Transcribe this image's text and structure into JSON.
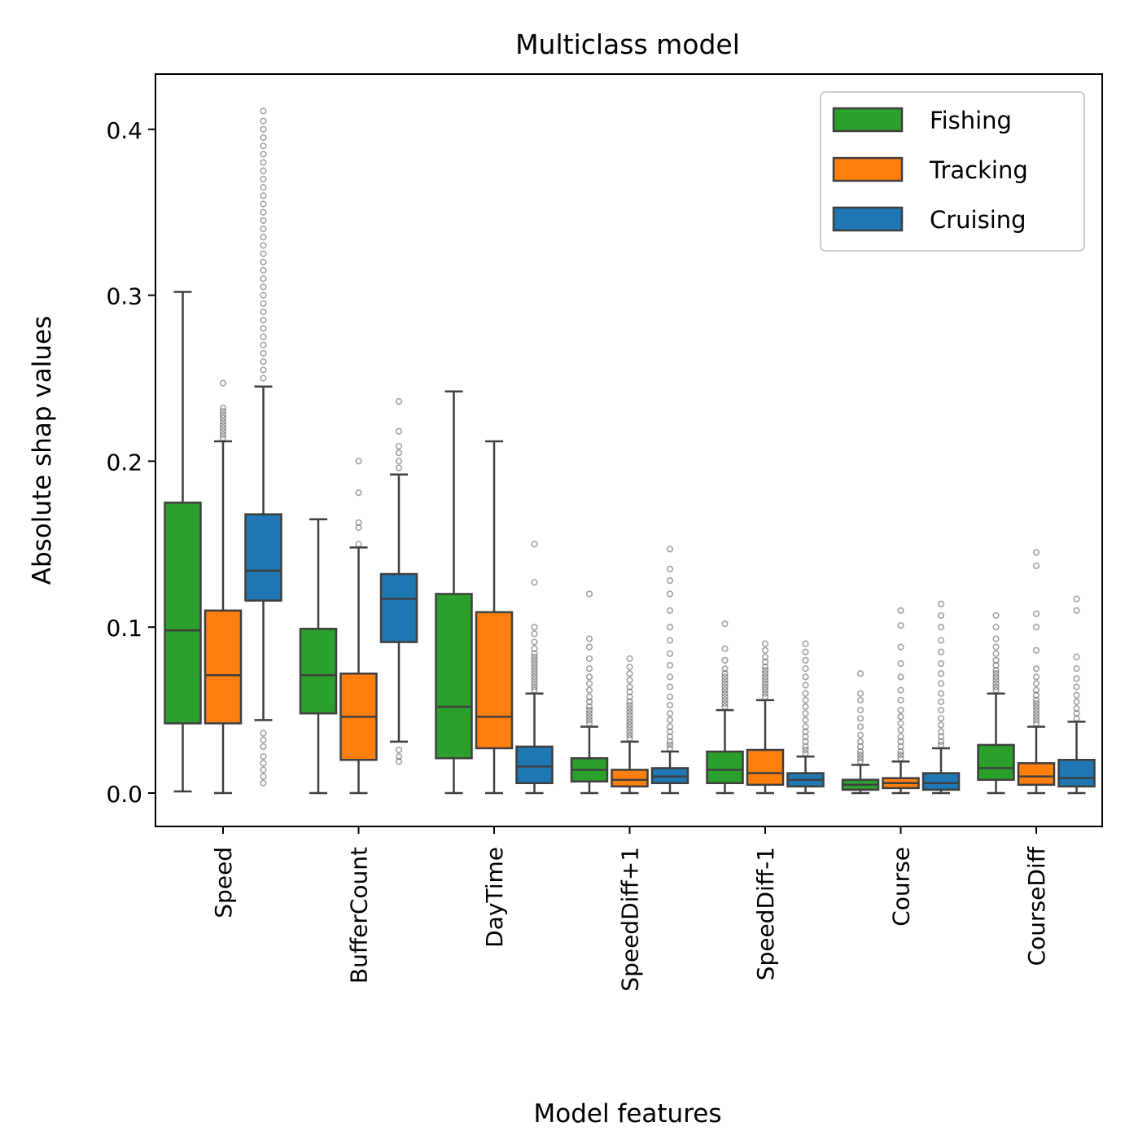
{
  "chart_data": {
    "type": "box",
    "title": "Multiclass model",
    "xlabel": "Model features",
    "ylabel": "Absolute shap values",
    "ylim": [
      -0.02,
      0.43
    ],
    "yticks": [
      0.0,
      0.1,
      0.2,
      0.3,
      0.4
    ],
    "ytick_labels": [
      "0.0",
      "0.1",
      "0.2",
      "0.3",
      "0.4"
    ],
    "grid": false,
    "legend_position": "top-right",
    "categories": [
      "Speed",
      "BufferCount",
      "DayTime",
      "SpeedDiff+1",
      "SpeedDiff-1",
      "Course",
      "CourseDiff"
    ],
    "series": [
      {
        "name": "Fishing",
        "color": "#2ca02c",
        "boxes": [
          {
            "min": 0.001,
            "q1": 0.042,
            "median": 0.098,
            "q3": 0.175,
            "max": 0.302,
            "outliers": []
          },
          {
            "min": 0.0,
            "q1": 0.048,
            "median": 0.071,
            "q3": 0.099,
            "max": 0.165,
            "outliers": []
          },
          {
            "min": 0.0,
            "q1": 0.021,
            "median": 0.052,
            "q3": 0.12,
            "max": 0.242,
            "outliers": []
          },
          {
            "min": 0.0,
            "q1": 0.007,
            "median": 0.014,
            "q3": 0.021,
            "max": 0.04,
            "outliers": [
              0.042,
              0.044,
              0.046,
              0.048,
              0.05,
              0.052,
              0.055,
              0.058,
              0.062,
              0.066,
              0.07,
              0.075,
              0.081,
              0.088,
              0.093,
              0.12
            ]
          },
          {
            "min": 0.0,
            "q1": 0.006,
            "median": 0.014,
            "q3": 0.025,
            "max": 0.05,
            "outliers": [
              0.052,
              0.054,
              0.056,
              0.058,
              0.06,
              0.062,
              0.064,
              0.066,
              0.068,
              0.07,
              0.072,
              0.075,
              0.08,
              0.087,
              0.102
            ]
          },
          {
            "min": 0.0,
            "q1": 0.002,
            "median": 0.005,
            "q3": 0.008,
            "max": 0.017,
            "outliers": [
              0.019,
              0.021,
              0.023,
              0.025,
              0.028,
              0.031,
              0.035,
              0.04,
              0.045,
              0.05,
              0.056,
              0.06,
              0.072
            ]
          },
          {
            "min": 0.0,
            "q1": 0.008,
            "median": 0.015,
            "q3": 0.029,
            "max": 0.06,
            "outliers": [
              0.062,
              0.064,
              0.066,
              0.068,
              0.07,
              0.072,
              0.074,
              0.077,
              0.08,
              0.084,
              0.088,
              0.093,
              0.1,
              0.107
            ]
          }
        ]
      },
      {
        "name": "Tracking",
        "color": "#ff7f0e",
        "boxes": [
          {
            "min": 0.0,
            "q1": 0.042,
            "median": 0.071,
            "q3": 0.11,
            "max": 0.212,
            "outliers": [
              0.214,
              0.216,
              0.218,
              0.22,
              0.222,
              0.224,
              0.226,
              0.228,
              0.23,
              0.232,
              0.247
            ]
          },
          {
            "min": 0.0,
            "q1": 0.02,
            "median": 0.046,
            "q3": 0.072,
            "max": 0.148,
            "outliers": [
              0.15,
              0.16,
              0.163,
              0.181,
              0.2
            ]
          },
          {
            "min": 0.0,
            "q1": 0.027,
            "median": 0.046,
            "q3": 0.109,
            "max": 0.212,
            "outliers": []
          },
          {
            "min": 0.0,
            "q1": 0.004,
            "median": 0.008,
            "q3": 0.014,
            "max": 0.031,
            "outliers": [
              0.033,
              0.035,
              0.037,
              0.039,
              0.041,
              0.043,
              0.045,
              0.047,
              0.049,
              0.051,
              0.053,
              0.055,
              0.058,
              0.061,
              0.064,
              0.068,
              0.072,
              0.076,
              0.081
            ]
          },
          {
            "min": 0.0,
            "q1": 0.005,
            "median": 0.012,
            "q3": 0.026,
            "max": 0.056,
            "outliers": [
              0.058,
              0.06,
              0.062,
              0.064,
              0.066,
              0.068,
              0.07,
              0.072,
              0.074,
              0.076,
              0.079,
              0.082,
              0.086,
              0.09
            ]
          },
          {
            "min": 0.0,
            "q1": 0.003,
            "median": 0.006,
            "q3": 0.009,
            "max": 0.019,
            "outliers": [
              0.021,
              0.023,
              0.025,
              0.028,
              0.031,
              0.034,
              0.038,
              0.042,
              0.046,
              0.05,
              0.056,
              0.062,
              0.07,
              0.078,
              0.088,
              0.101,
              0.11
            ]
          },
          {
            "min": 0.0,
            "q1": 0.005,
            "median": 0.01,
            "q3": 0.018,
            "max": 0.04,
            "outliers": [
              0.042,
              0.044,
              0.046,
              0.048,
              0.05,
              0.052,
              0.054,
              0.056,
              0.059,
              0.062,
              0.066,
              0.07,
              0.075,
              0.086,
              0.1,
              0.108,
              0.137,
              0.145
            ]
          }
        ]
      },
      {
        "name": "Cruising",
        "color": "#1f77b4",
        "boxes": [
          {
            "min": 0.044,
            "q1": 0.116,
            "median": 0.134,
            "q3": 0.168,
            "max": 0.245,
            "outliers": [
              0.006,
              0.01,
              0.014,
              0.018,
              0.022,
              0.028,
              0.032,
              0.036,
              0.25,
              0.255,
              0.26,
              0.265,
              0.27,
              0.275,
              0.28,
              0.285,
              0.29,
              0.295,
              0.3,
              0.305,
              0.31,
              0.315,
              0.32,
              0.325,
              0.33,
              0.335,
              0.34,
              0.345,
              0.35,
              0.355,
              0.36,
              0.365,
              0.37,
              0.375,
              0.38,
              0.385,
              0.39,
              0.395,
              0.4,
              0.405,
              0.411
            ]
          },
          {
            "min": 0.031,
            "q1": 0.091,
            "median": 0.117,
            "q3": 0.132,
            "max": 0.192,
            "outliers": [
              0.019,
              0.022,
              0.026,
              0.196,
              0.2,
              0.205,
              0.209,
              0.218,
              0.236
            ]
          },
          {
            "min": 0.0,
            "q1": 0.006,
            "median": 0.016,
            "q3": 0.028,
            "max": 0.06,
            "outliers": [
              0.062,
              0.064,
              0.066,
              0.068,
              0.07,
              0.072,
              0.074,
              0.076,
              0.078,
              0.08,
              0.082,
              0.084,
              0.087,
              0.091,
              0.096,
              0.1,
              0.127,
              0.15
            ]
          },
          {
            "min": 0.0,
            "q1": 0.006,
            "median": 0.01,
            "q3": 0.015,
            "max": 0.025,
            "outliers": [
              0.027,
              0.029,
              0.031,
              0.034,
              0.037,
              0.04,
              0.044,
              0.048,
              0.053,
              0.058,
              0.064,
              0.07,
              0.077,
              0.084,
              0.092,
              0.1,
              0.11,
              0.12,
              0.128,
              0.135,
              0.147
            ]
          },
          {
            "min": 0.0,
            "q1": 0.004,
            "median": 0.008,
            "q3": 0.012,
            "max": 0.022,
            "outliers": [
              0.024,
              0.026,
              0.028,
              0.031,
              0.034,
              0.037,
              0.04,
              0.044,
              0.048,
              0.052,
              0.056,
              0.06,
              0.065,
              0.07,
              0.075,
              0.08,
              0.085,
              0.09
            ]
          },
          {
            "min": 0.0,
            "q1": 0.002,
            "median": 0.006,
            "q3": 0.012,
            "max": 0.027,
            "outliers": [
              0.029,
              0.031,
              0.034,
              0.037,
              0.041,
              0.045,
              0.05,
              0.055,
              0.06,
              0.066,
              0.072,
              0.078,
              0.085,
              0.092,
              0.1,
              0.107,
              0.114
            ]
          },
          {
            "min": 0.0,
            "q1": 0.004,
            "median": 0.009,
            "q3": 0.02,
            "max": 0.043,
            "outliers": [
              0.045,
              0.048,
              0.051,
              0.055,
              0.059,
              0.064,
              0.069,
              0.075,
              0.082,
              0.11,
              0.117
            ]
          }
        ]
      }
    ]
  }
}
